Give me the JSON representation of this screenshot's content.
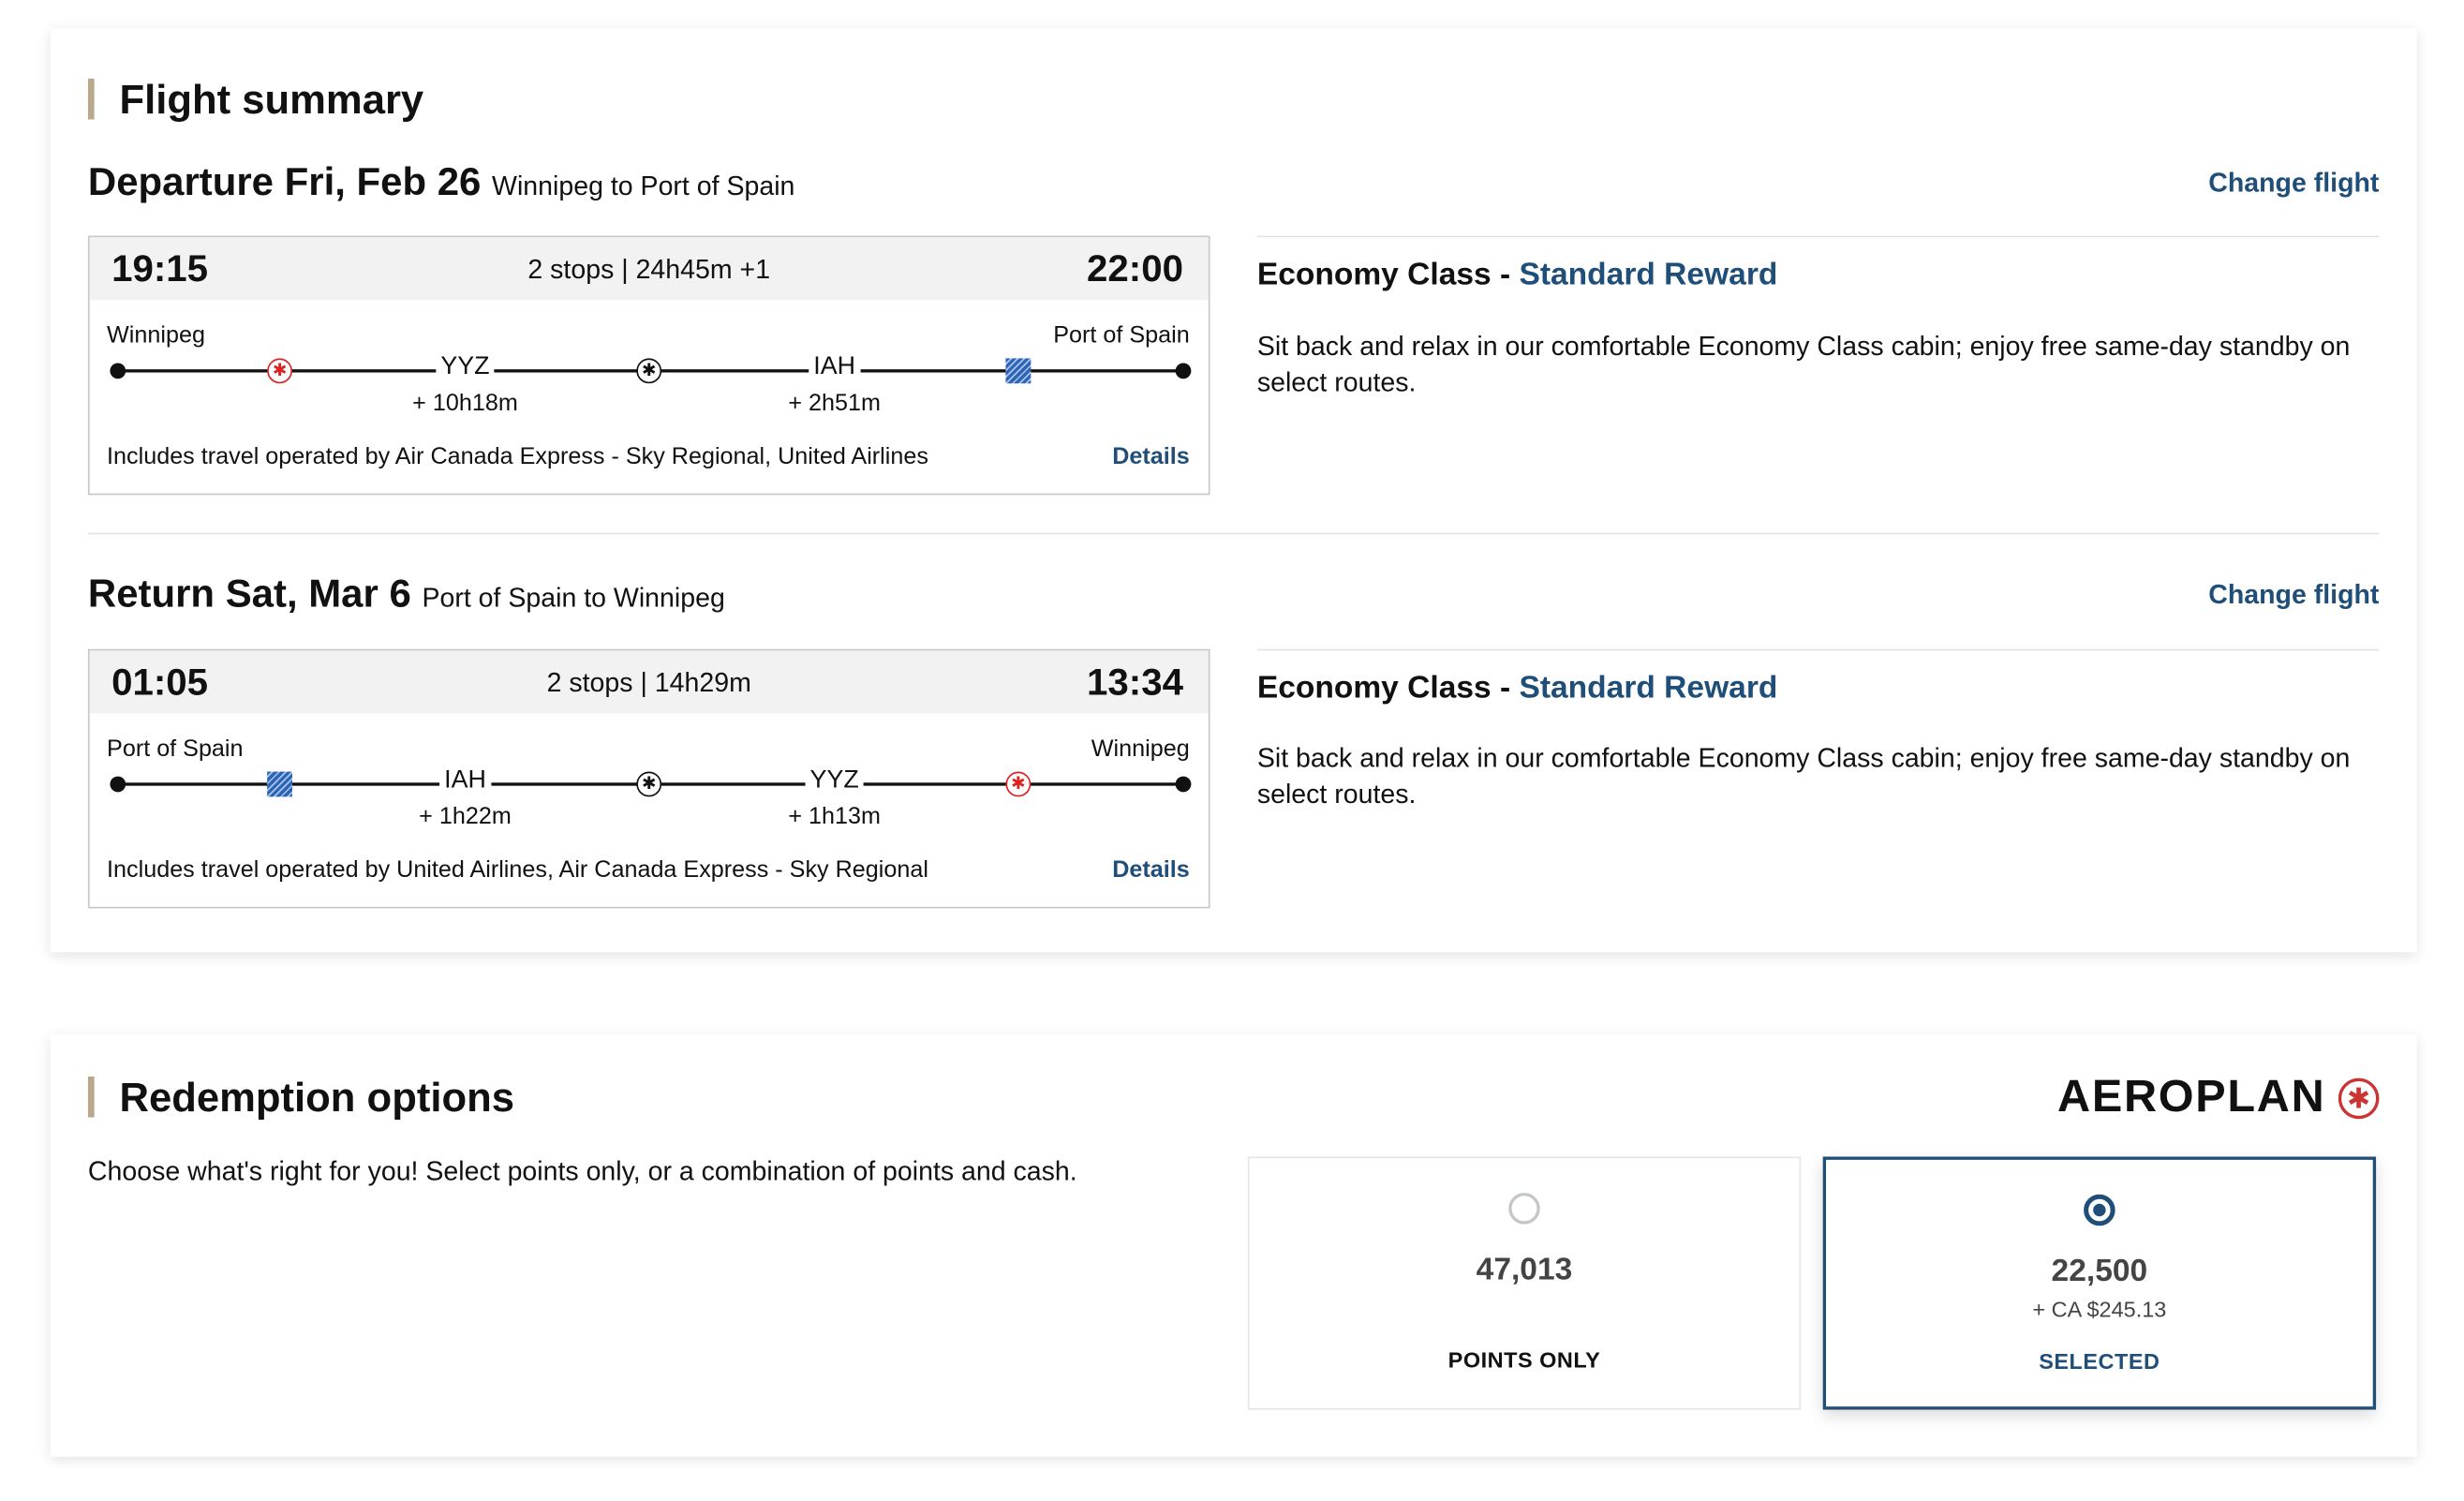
{
  "flight_summary": {
    "title": "Flight summary",
    "change_flight_label": "Change flight",
    "details_label": "Details",
    "departure": {
      "header": "Departure Fri, Feb 26",
      "route": "Winnipeg to Port of Spain",
      "depart_time": "19:15",
      "arrive_time": "22:00",
      "stops_duration": "2 stops | 24h45m +1",
      "origin": "Winnipeg",
      "destination": "Port of Spain",
      "stops": [
        {
          "code": "YYZ",
          "layover": "+ 10h18m"
        },
        {
          "code": "IAH",
          "layover": "+ 2h51m"
        }
      ],
      "airline_icons": [
        "air-canada-red-icon",
        "air-canada-black-icon",
        "united-icon"
      ],
      "operated_by": "Includes travel operated by Air Canada Express - Sky Regional, United Airlines",
      "cabin": "Economy Class - ",
      "fare": "Standard Reward",
      "description": "Sit back and relax in our comfortable Economy Class cabin; enjoy free same-day standby on select routes."
    },
    "return": {
      "header": "Return Sat, Mar 6",
      "route": "Port of Spain to Winnipeg",
      "depart_time": "01:05",
      "arrive_time": "13:34",
      "stops_duration": "2 stops | 14h29m",
      "origin": "Port of Spain",
      "destination": "Winnipeg",
      "stops": [
        {
          "code": "IAH",
          "layover": "+ 1h22m"
        },
        {
          "code": "YYZ",
          "layover": "+ 1h13m"
        }
      ],
      "airline_icons": [
        "united-icon",
        "air-canada-black-icon",
        "air-canada-red-icon"
      ],
      "operated_by": "Includes travel operated by United Airlines, Air Canada Express - Sky Regional",
      "cabin": "Economy Class - ",
      "fare": "Standard Reward",
      "description": "Sit back and relax in our comfortable Economy Class cabin; enjoy free same-day standby on select routes."
    }
  },
  "redemption": {
    "title": "Redemption options",
    "intro": "Choose what's right for you! Select points only, or a combination of points and cash.",
    "logo_text": "AEROPLAN",
    "options": [
      {
        "points": "47,013",
        "cash": "",
        "label": "POINTS ONLY",
        "selected": false
      },
      {
        "points": "22,500",
        "cash": "+ CA $245.13",
        "label": "SELECTED",
        "selected": true
      }
    ]
  },
  "colors": {
    "accent": "#1f4e79",
    "title_bar": "#b9a88c",
    "air_canada_red": "#d22222"
  }
}
